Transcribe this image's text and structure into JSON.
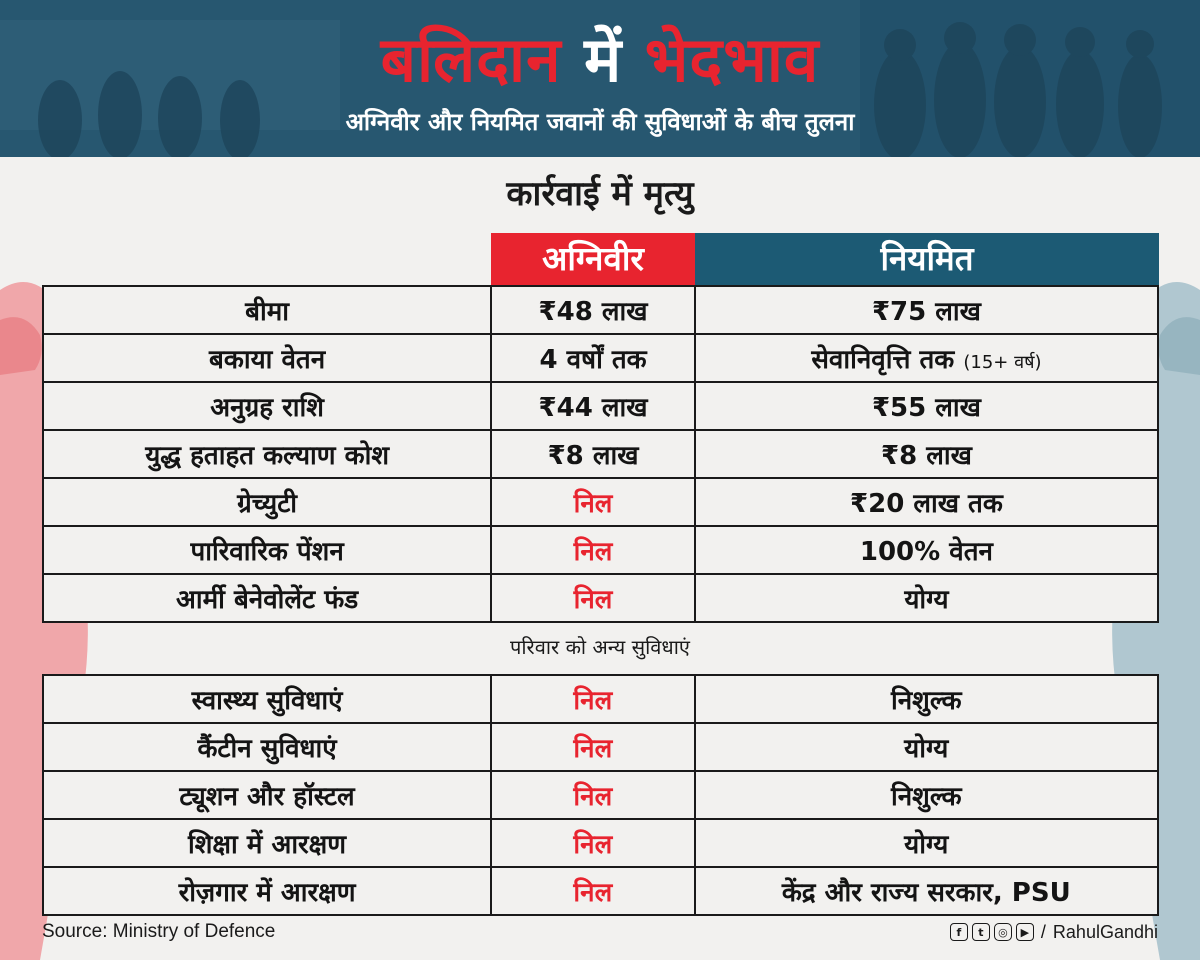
{
  "header": {
    "title_part1": "बलिदान",
    "title_part2": "में",
    "title_part3": "भेदभाव",
    "subtitle": "अग्निवीर और नियमित जवानों की सुविधाओं के बीच तुलना"
  },
  "section_title": "कार्रवाई में मृत्यु",
  "columns": {
    "agniveer": "अग्निवीर",
    "regular": "नियमित"
  },
  "rows_death": [
    {
      "label": "बीमा",
      "agniveer": "₹48 लाख",
      "regular": "₹75 लाख",
      "regular_note": "",
      "agniveer_nil": false
    },
    {
      "label": "बकाया वेतन",
      "agniveer": "4 वर्षों तक",
      "regular": "सेवानिवृत्ति तक",
      "regular_note": "(15+ वर्ष)",
      "agniveer_nil": false
    },
    {
      "label": "अनुग्रह राशि",
      "agniveer": "₹44 लाख",
      "regular": "₹55 लाख",
      "regular_note": "",
      "agniveer_nil": false
    },
    {
      "label": "युद्ध हताहत कल्याण कोश",
      "agniveer": "₹8 लाख",
      "regular": "₹8 लाख",
      "regular_note": "",
      "agniveer_nil": false
    },
    {
      "label": "ग्रेच्युटी",
      "agniveer": "निल",
      "regular": "₹20 लाख तक",
      "regular_note": "",
      "agniveer_nil": true
    },
    {
      "label": "पारिवारिक पेंशन",
      "agniveer": "निल",
      "regular": "100% वेतन",
      "regular_note": "",
      "agniveer_nil": true
    },
    {
      "label": "आर्मी बेनेवोलेंट फंड",
      "agniveer": "निल",
      "regular": "योग्य",
      "regular_note": "",
      "agniveer_nil": true
    }
  ],
  "other_heading": "परिवार को अन्य सुविधाएं",
  "rows_other": [
    {
      "label": "स्वास्थ्य सुविधाएं",
      "agniveer": "निल",
      "regular": "निशुल्क",
      "agniveer_nil": true
    },
    {
      "label": "कैंटीन सुविधाएं",
      "agniveer": "निल",
      "regular": "योग्य",
      "agniveer_nil": true
    },
    {
      "label": "ट्यूशन और हॉस्टल",
      "agniveer": "निल",
      "regular": "निशुल्क",
      "agniveer_nil": true
    },
    {
      "label": "शिक्षा में आरक्षण",
      "agniveer": "निल",
      "regular": "योग्य",
      "agniveer_nil": true
    },
    {
      "label": "रोज़गार में आरक्षण",
      "agniveer": "निल",
      "regular": "केंद्र और राज्य सरकार, PSU",
      "agniveer_nil": true
    }
  ],
  "footer": {
    "source": "Source: Ministry of Defence",
    "social_icons": [
      "facebook-icon",
      "twitter-icon",
      "instagram-icon",
      "youtube-icon"
    ],
    "separator": "/",
    "handle": "RahulGandhi"
  },
  "colors": {
    "accent_red": "#e8242f",
    "header_blue": "#1c5a74",
    "background": "#f2f1ef"
  }
}
